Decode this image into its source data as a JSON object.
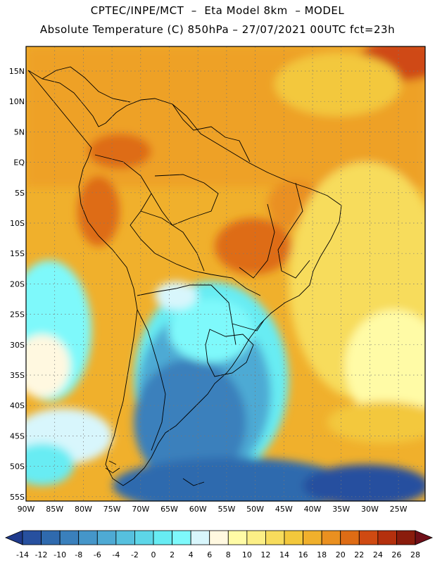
{
  "header": {
    "line1": "CPTEC/INPE/MCT  –  Eta Model 8km  – MODEL",
    "line2": "Absolute Temperature (C) 850hPa – 27/07/2021 00UTC fct=23h"
  },
  "map": {
    "lat_labels": [
      "15N",
      "10N",
      "5N",
      "EQ",
      "5S",
      "10S",
      "15S",
      "20S",
      "25S",
      "30S",
      "35S",
      "40S",
      "45S",
      "50S",
      "55S"
    ],
    "lon_labels": [
      "90W",
      "85W",
      "80W",
      "75W",
      "70W",
      "65W",
      "60W",
      "55W",
      "50W",
      "45W",
      "40W",
      "35W",
      "30W",
      "25W"
    ],
    "grid": true
  },
  "colorbar": {
    "labels": [
      "-14",
      "-12",
      "-10",
      "-8",
      "-6",
      "-4",
      "-2",
      "0",
      "2",
      "4",
      "6",
      "8",
      "10",
      "12",
      "14",
      "16",
      "18",
      "20",
      "22",
      "24",
      "26",
      "28"
    ],
    "colors": [
      "#1f3a8c",
      "#27509f",
      "#2f6aae",
      "#3a80bc",
      "#4596c9",
      "#4eaad4",
      "#56c0de",
      "#5dd6e8",
      "#67ecf3",
      "#7ef9fb",
      "#d8f6fc",
      "#fff8e0",
      "#fffba6",
      "#fcef86",
      "#f7dc5c",
      "#f3c83c",
      "#f0b02c",
      "#ea9020",
      "#de6c15",
      "#cf4a12",
      "#b4300d",
      "#8a1c0c",
      "#6f0f18"
    ]
  }
}
